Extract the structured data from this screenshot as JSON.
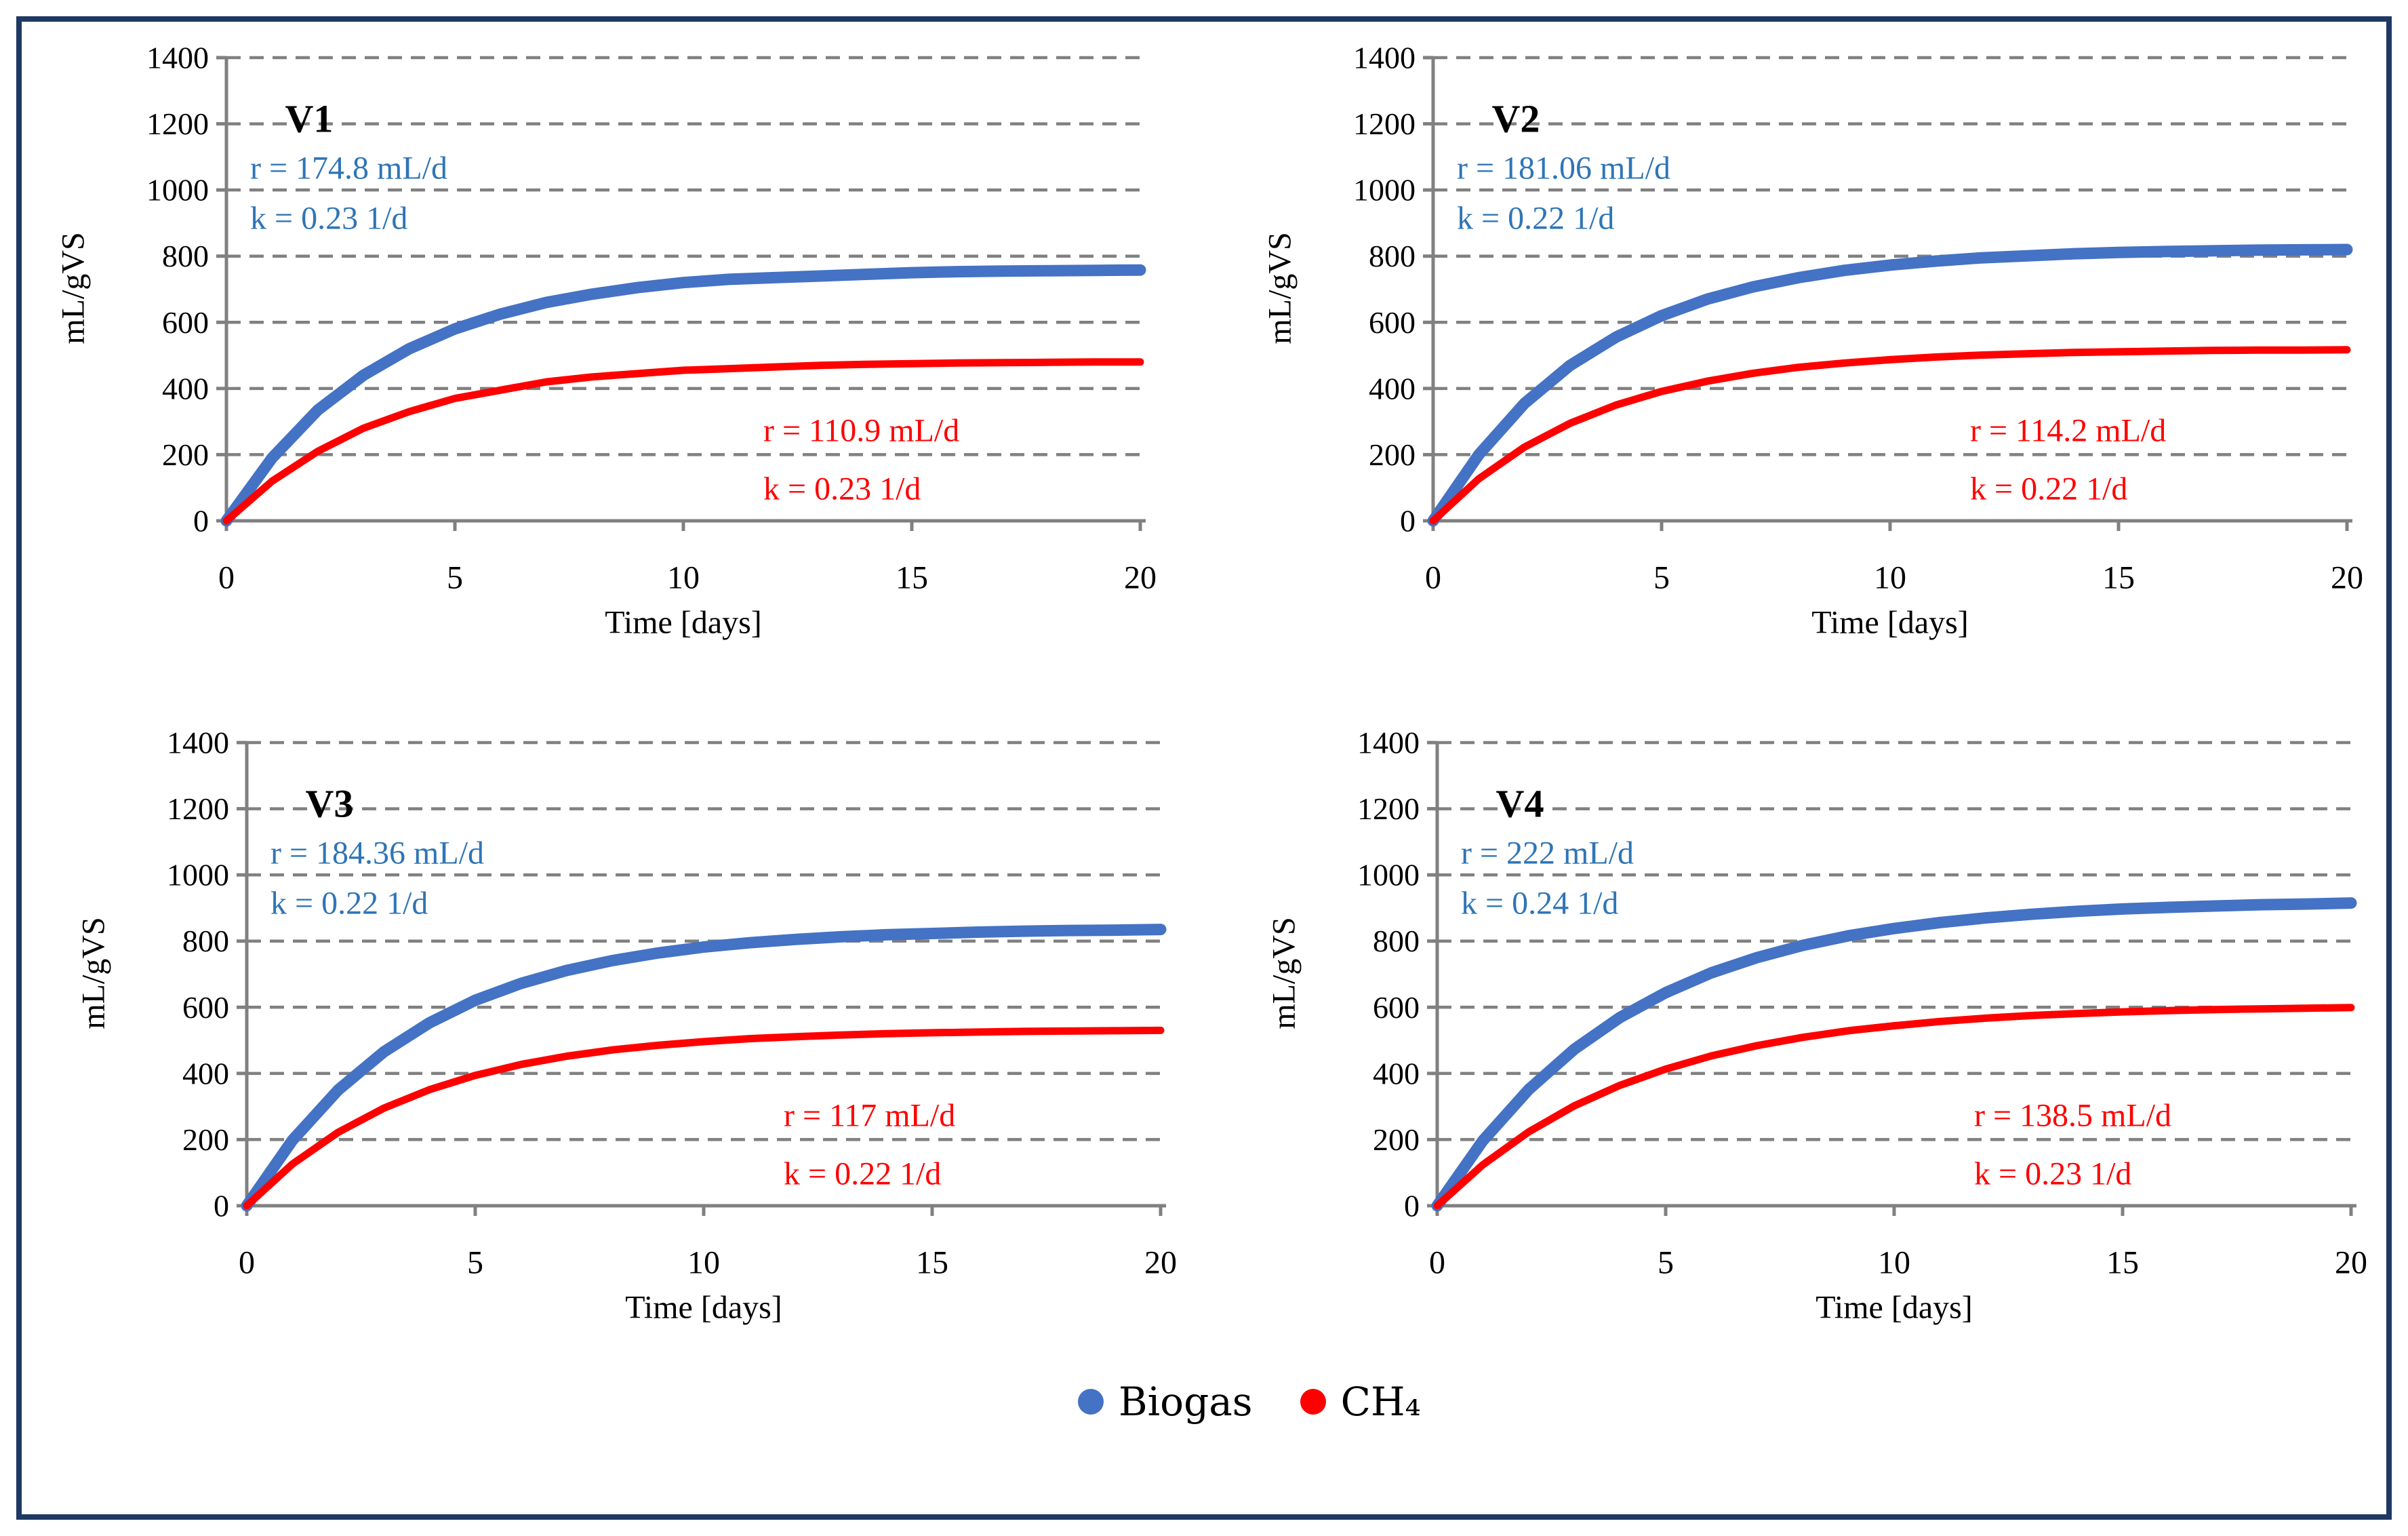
{
  "figure": {
    "border_color": "#1F3864",
    "background_color": "#FFFFFF",
    "layout": "2x2 grid of line charts with shared bottom legend"
  },
  "colors": {
    "biogas_line": "#4472C4",
    "ch4_line": "#FF0000",
    "biogas_annotation_text": "#2E75B6",
    "ch4_annotation_text": "#FF0000",
    "axis": "#808080",
    "grid": "#808080",
    "tick_label": "#000000",
    "title": "#000000"
  },
  "legend": {
    "position": "bottom-center",
    "items": [
      {
        "label": "Biogas",
        "color": "#4472C4"
      },
      {
        "label": "CH₄",
        "color": "#FF0000"
      }
    ]
  },
  "chart_data": [
    {
      "type": "line",
      "title": "V1",
      "xlabel": "Time [days]",
      "ylabel": "mL/gVS",
      "xlim": [
        0,
        20
      ],
      "ylim": [
        0,
        1400
      ],
      "xticks": [
        0,
        5,
        10,
        15,
        20
      ],
      "yticks": [
        0,
        200,
        400,
        600,
        800,
        1000,
        1200,
        1400
      ],
      "grid": "dashed-horizontal",
      "x_days": [
        0,
        1,
        2,
        3,
        4,
        5,
        6,
        7,
        8,
        9,
        10,
        11,
        12,
        13,
        14,
        15,
        16,
        17,
        18,
        19,
        20
      ],
      "series": [
        {
          "name": "Biogas",
          "color": "#4472C4",
          "values": [
            0,
            190,
            335,
            440,
            520,
            580,
            625,
            660,
            685,
            705,
            720,
            730,
            735,
            740,
            745,
            750,
            753,
            755,
            756,
            757,
            758
          ]
        },
        {
          "name": "CH4",
          "color": "#FF0000",
          "values": [
            0,
            120,
            210,
            280,
            330,
            370,
            395,
            420,
            435,
            445,
            455,
            460,
            465,
            470,
            473,
            475,
            477,
            478,
            479,
            480,
            480
          ]
        }
      ],
      "fit_annotations": [
        {
          "series": "Biogas",
          "color": "#2E75B6",
          "lines": [
            "r = 174.8 mL/d",
            "k = 0.23 1/d"
          ]
        },
        {
          "series": "CH4",
          "color": "#FF0000",
          "lines": [
            "r = 110.9 mL/d",
            "k = 0.23 1/d"
          ]
        }
      ]
    },
    {
      "type": "line",
      "title": "V2",
      "xlabel": "Time [days]",
      "ylabel": "mL/gVS",
      "xlim": [
        0,
        20
      ],
      "ylim": [
        0,
        1400
      ],
      "xticks": [
        0,
        5,
        10,
        15,
        20
      ],
      "yticks": [
        0,
        200,
        400,
        600,
        800,
        1000,
        1200,
        1400
      ],
      "grid": "dashed-horizontal",
      "x_days": [
        0,
        1,
        2,
        3,
        4,
        5,
        6,
        7,
        8,
        9,
        10,
        11,
        12,
        13,
        14,
        15,
        16,
        17,
        18,
        19,
        20
      ],
      "series": [
        {
          "name": "Biogas",
          "color": "#4472C4",
          "values": [
            0,
            200,
            355,
            470,
            555,
            620,
            670,
            707,
            735,
            757,
            773,
            785,
            795,
            801,
            807,
            811,
            814,
            816,
            818,
            819,
            820
          ]
        },
        {
          "name": "CH4",
          "color": "#FF0000",
          "values": [
            0,
            127,
            223,
            295,
            350,
            391,
            422,
            446,
            464,
            477,
            487,
            495,
            501,
            505,
            509,
            511,
            513,
            515,
            516,
            516,
            517
          ]
        }
      ],
      "fit_annotations": [
        {
          "series": "Biogas",
          "color": "#2E75B6",
          "lines": [
            "r = 181.06 mL/d",
            "k = 0.22 1/d"
          ]
        },
        {
          "series": "CH4",
          "color": "#FF0000",
          "lines": [
            "r = 114.2 mL/d",
            "k = 0.22 1/d"
          ]
        }
      ]
    },
    {
      "type": "line",
      "title": "V3",
      "xlabel": "Time [days]",
      "ylabel": "mL/gVS",
      "xlim": [
        0,
        20
      ],
      "ylim": [
        0,
        1400
      ],
      "xticks": [
        0,
        5,
        10,
        15,
        20
      ],
      "yticks": [
        0,
        200,
        400,
        600,
        800,
        1000,
        1200,
        1400
      ],
      "grid": "dashed-horizontal",
      "x_days": [
        0,
        1,
        2,
        3,
        4,
        5,
        6,
        7,
        8,
        9,
        10,
        11,
        12,
        13,
        14,
        15,
        16,
        17,
        18,
        19,
        20
      ],
      "series": [
        {
          "name": "Biogas",
          "color": "#4472C4",
          "values": [
            0,
            198,
            350,
            465,
            553,
            621,
            672,
            711,
            741,
            764,
            782,
            795,
            805,
            813,
            819,
            823,
            827,
            830,
            832,
            833,
            835
          ]
        },
        {
          "name": "CH4",
          "color": "#FF0000",
          "values": [
            0,
            126,
            222,
            295,
            351,
            394,
            427,
            452,
            471,
            485,
            496,
            505,
            511,
            516,
            520,
            523,
            525,
            527,
            528,
            529,
            530
          ]
        }
      ],
      "fit_annotations": [
        {
          "series": "Biogas",
          "color": "#2E75B6",
          "lines": [
            "r = 184.36 mL/d",
            "k = 0.22 1/d"
          ]
        },
        {
          "series": "CH4",
          "color": "#FF0000",
          "lines": [
            "r = 117 mL/d",
            "k = 0.22 1/d"
          ]
        }
      ]
    },
    {
      "type": "line",
      "title": "V4",
      "xlabel": "Time [days]",
      "ylabel": "mL/gVS",
      "xlim": [
        0,
        20
      ],
      "ylim": [
        0,
        1400
      ],
      "xticks": [
        0,
        5,
        10,
        15,
        20
      ],
      "yticks": [
        0,
        200,
        400,
        600,
        800,
        1000,
        1200,
        1400
      ],
      "grid": "dashed-horizontal",
      "x_days": [
        0,
        1,
        2,
        3,
        4,
        5,
        6,
        7,
        8,
        9,
        10,
        11,
        12,
        13,
        14,
        15,
        16,
        17,
        18,
        19,
        20
      ],
      "series": [
        {
          "name": "Biogas",
          "color": "#4472C4",
          "values": [
            0,
            197,
            351,
            473,
            569,
            644,
            704,
            750,
            787,
            816,
            838,
            856,
            870,
            881,
            890,
            897,
            902,
            906,
            910,
            912,
            915
          ]
        },
        {
          "name": "CH4",
          "color": "#FF0000",
          "values": [
            0,
            124,
            223,
            302,
            364,
            413,
            453,
            484,
            509,
            529,
            544,
            557,
            567,
            575,
            581,
            586,
            590,
            593,
            595,
            597,
            599
          ]
        }
      ],
      "fit_annotations": [
        {
          "series": "Biogas",
          "color": "#2E75B6",
          "lines": [
            "r = 222 mL/d",
            "k = 0.24 1/d"
          ]
        },
        {
          "series": "CH4",
          "color": "#FF0000",
          "lines": [
            "r = 138.5 mL/d",
            "k = 0.23 1/d"
          ]
        }
      ]
    }
  ]
}
